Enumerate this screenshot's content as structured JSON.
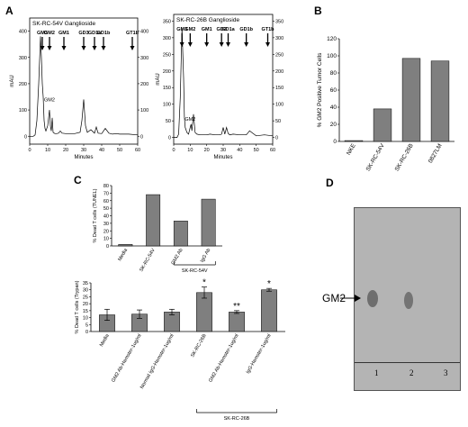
{
  "panel_letters": [
    "A",
    "B",
    "C",
    "D"
  ],
  "chart_data": [
    {
      "panel": "A-left",
      "type": "line",
      "title": "SK-RC-54V Ganglioside",
      "xlabel": "Minutes",
      "ylabel": "mAU",
      "xlim": [
        0,
        60
      ],
      "ylim": [
        -30,
        450
      ],
      "x_ticks": [
        "0",
        "10",
        "20",
        "30",
        "40",
        "50",
        "60"
      ],
      "y_ticks_left": [
        "0",
        "100",
        "200",
        "300",
        "400"
      ],
      "y_ticks_right": [
        "0",
        "100",
        "200",
        "300",
        "400"
      ],
      "markers": [
        {
          "label": "GM3",
          "x": 7
        },
        {
          "label": "GM2",
          "x": 11
        },
        {
          "label": "GM1",
          "x": 19
        },
        {
          "label": "GD3",
          "x": 30
        },
        {
          "label": "GD1a",
          "x": 36
        },
        {
          "label": "GD1b",
          "x": 41
        },
        {
          "label": "GT1b",
          "x": 57
        }
      ],
      "peak_labels": [
        {
          "label": "GM2",
          "x": 11,
          "y": 120
        }
      ],
      "x": [
        0,
        2,
        3,
        4,
        5,
        6,
        6.5,
        7,
        7.5,
        8,
        8.5,
        9,
        10,
        11,
        11.5,
        12,
        12.5,
        13,
        14,
        15,
        16,
        17,
        18,
        20,
        22,
        25,
        28,
        29,
        30,
        31,
        32,
        34,
        36,
        37,
        38,
        40,
        42,
        44,
        46,
        48,
        50,
        55,
        60
      ],
      "y": [
        0,
        0,
        5,
        60,
        200,
        380,
        300,
        200,
        150,
        60,
        30,
        20,
        40,
        100,
        40,
        20,
        70,
        15,
        10,
        10,
        12,
        20,
        12,
        10,
        10,
        10,
        15,
        60,
        140,
        40,
        15,
        25,
        12,
        35,
        12,
        10,
        30,
        12,
        8,
        10,
        8,
        8,
        5
      ]
    },
    {
      "panel": "A-right",
      "type": "line",
      "title": "SK-RC-26B Ganglioside",
      "xlabel": "Minutes",
      "ylabel": "mAU",
      "xlim": [
        0,
        60
      ],
      "ylim": [
        -20,
        370
      ],
      "x_ticks": [
        "0",
        "10",
        "20",
        "30",
        "40",
        "50",
        "60"
      ],
      "y_ticks_left": [
        "0",
        "50",
        "100",
        "150",
        "200",
        "250",
        "300",
        "350"
      ],
      "y_ticks_right": [
        "0",
        "50",
        "100",
        "150",
        "200",
        "250",
        "300",
        "350"
      ],
      "markers": [
        {
          "label": "GM3",
          "x": 5
        },
        {
          "label": "GM2",
          "x": 10
        },
        {
          "label": "GM1",
          "x": 20
        },
        {
          "label": "GD3",
          "x": 29
        },
        {
          "label": "GD1a",
          "x": 33
        },
        {
          "label": "GD1b",
          "x": 44
        },
        {
          "label": "GT1b",
          "x": 57
        }
      ],
      "peak_labels": [
        {
          "label": "GM2",
          "x": 10,
          "y": 40
        }
      ],
      "x": [
        0,
        2,
        3,
        4,
        5,
        6,
        6.5,
        7,
        8,
        9,
        10,
        10.5,
        11,
        12,
        13,
        14,
        16,
        18,
        20,
        22,
        25,
        28,
        29,
        30,
        31,
        32,
        33,
        34,
        36,
        40,
        44,
        46,
        50,
        55,
        60
      ],
      "y": [
        0,
        0,
        10,
        120,
        330,
        180,
        60,
        30,
        15,
        10,
        30,
        40,
        20,
        70,
        15,
        10,
        8,
        8,
        8,
        10,
        8,
        8,
        10,
        30,
        10,
        30,
        12,
        8,
        10,
        8,
        8,
        20,
        5,
        8,
        5
      ]
    },
    {
      "panel": "B",
      "type": "bar",
      "ylabel": "% GM2 Positive Tumor Cells",
      "categories": [
        "NKE",
        "SK-RC-54V",
        "SK-RC-26B",
        "0827LM"
      ],
      "values": [
        1,
        38,
        97,
        94
      ],
      "ylim": [
        0,
        120
      ],
      "y_ticks": [
        "0",
        "20",
        "40",
        "60",
        "80",
        "100",
        "120"
      ],
      "bar_color": "#7f7f7f"
    },
    {
      "panel": "C-top",
      "type": "bar",
      "ylabel": "% Dead T cells (TUNEL)",
      "categories": [
        "Media",
        "SK-RC-54V",
        "GM2 Ab",
        "IgG Ab"
      ],
      "values": [
        2,
        68,
        33,
        62
      ],
      "ylim": [
        0,
        80
      ],
      "y_ticks": [
        "0",
        "10",
        "20",
        "30",
        "40",
        "50",
        "60",
        "70",
        "80"
      ],
      "group_label": "SK-RC-54V",
      "group_range": [
        2,
        3
      ],
      "bar_color": "#7f7f7f"
    },
    {
      "panel": "C-bottom",
      "type": "bar",
      "ylabel": "% Dead T cells (Trypan)",
      "categories": [
        "Media",
        "GM2 Ab-Hamster-1ug/ml",
        "Normal IgG-Hamster-1ug/ml",
        "SK-RC-26B",
        "GM2 Ab-Hamster-1ug/ml",
        "IgG-Hamster-1ug/ml"
      ],
      "values": [
        12,
        12.5,
        14,
        28,
        14,
        30
      ],
      "errors": [
        4,
        3,
        2,
        4,
        1,
        1
      ],
      "significance": [
        "",
        "",
        "",
        "*",
        "**",
        "*"
      ],
      "ylim": [
        0,
        35
      ],
      "y_ticks": [
        "0",
        "5",
        "10",
        "15",
        "20",
        "25",
        "30",
        "35"
      ],
      "group_label": "SK-RC-26B",
      "group_range": [
        3,
        5
      ],
      "bar_color": "#7f7f7f"
    }
  ],
  "gel": {
    "band_label": "GM2",
    "lane_labels": [
      "1",
      "2",
      "3"
    ]
  }
}
